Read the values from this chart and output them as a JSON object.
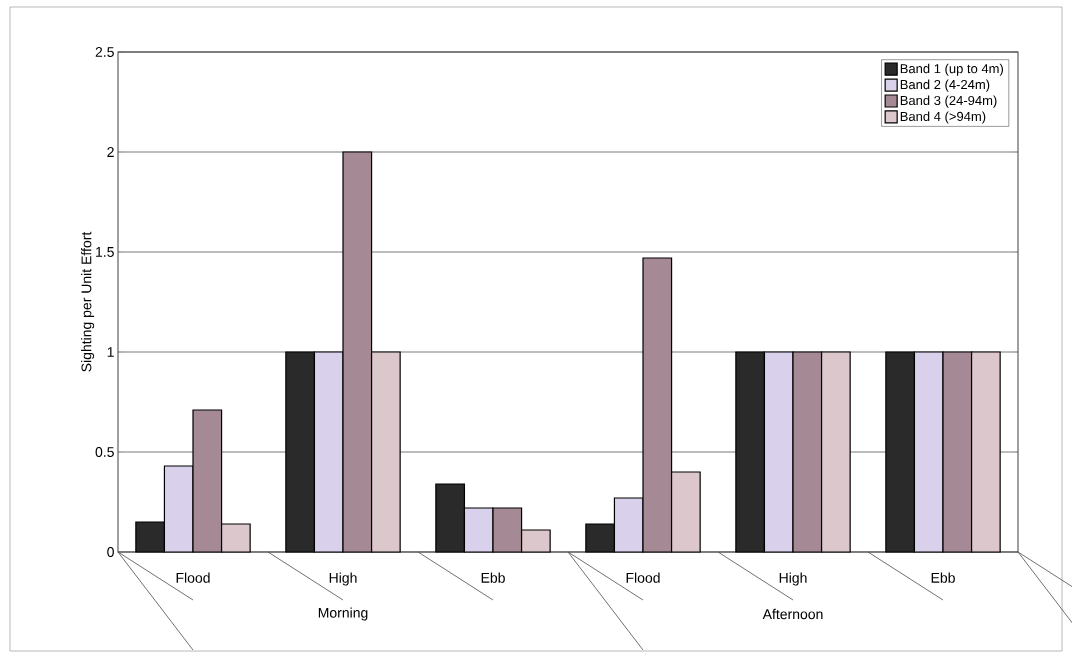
{
  "chart_data": {
    "type": "bar",
    "ylabel": "Sighting per Unit Effort",
    "categories": [
      "Flood",
      "High",
      "Ebb",
      "Flood",
      "High",
      "Ebb"
    ],
    "annotations": [
      "Morning",
      "Afternoon"
    ],
    "series": [
      {
        "name": "Band 1 (up to 4m)",
        "color": "#2a2a2a",
        "values": [
          0.15,
          1,
          0.34,
          0.14,
          1,
          1
        ]
      },
      {
        "name": "Band 2 (4-24m)",
        "color": "#d9d0ec",
        "values": [
          0.43,
          1,
          0.22,
          0.27,
          1,
          1
        ]
      },
      {
        "name": "Band 3 (24-94m)",
        "color": "#a58a96",
        "values": [
          0.71,
          2,
          0.22,
          1.47,
          1,
          1
        ]
      },
      {
        "name": "Band 4 (>94m)",
        "color": "#dcc8cc",
        "values": [
          0.14,
          1,
          0.11,
          0.4,
          1,
          1
        ]
      }
    ],
    "ylim": [
      0,
      2.5
    ],
    "yticks": [
      0,
      0.5,
      1,
      1.5,
      2,
      2.5
    ],
    "grid": "y",
    "legend": "top right"
  }
}
